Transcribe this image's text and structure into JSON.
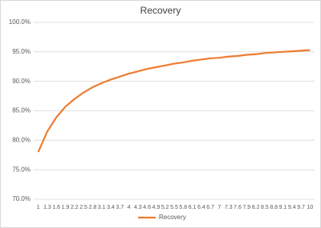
{
  "chart_data": {
    "type": "line",
    "title": "Recovery",
    "categories": [
      "1",
      "1.3",
      "1.6",
      "1.9",
      "2.2",
      "2.5",
      "2.8",
      "3.1",
      "3.4",
      "3.7",
      "4",
      "4.3",
      "4.6",
      "4.9",
      "5.2",
      "5.5",
      "5.8",
      "6.1",
      "6.4",
      "6.7",
      "7",
      "7.3",
      "7.6",
      "7.9",
      "8.2",
      "8.5",
      "8.8",
      "9.1",
      "9.4",
      "9.7",
      "10"
    ],
    "series": [
      {
        "name": "Recovery",
        "color": "#ed7d31",
        "values": [
          78.0,
          81.5,
          83.9,
          85.7,
          87.0,
          88.1,
          89.0,
          89.7,
          90.3,
          90.8,
          91.3,
          91.7,
          92.1,
          92.4,
          92.7,
          93.0,
          93.2,
          93.5,
          93.7,
          93.9,
          94.0,
          94.2,
          94.3,
          94.5,
          94.6,
          94.8,
          94.9,
          95.0,
          95.1,
          95.2,
          95.3
        ]
      }
    ],
    "ylim": [
      70,
      100
    ],
    "yticks": [
      {
        "value": 70,
        "label": "70.0%"
      },
      {
        "value": 75,
        "label": "75.0%"
      },
      {
        "value": 80,
        "label": "80.0%"
      },
      {
        "value": 85,
        "label": "85.0%"
      },
      {
        "value": 90,
        "label": "90.0%"
      },
      {
        "value": 95,
        "label": "95.0%"
      },
      {
        "value": 100,
        "label": "100.0%"
      }
    ],
    "grid": true,
    "legend": "bottom"
  }
}
